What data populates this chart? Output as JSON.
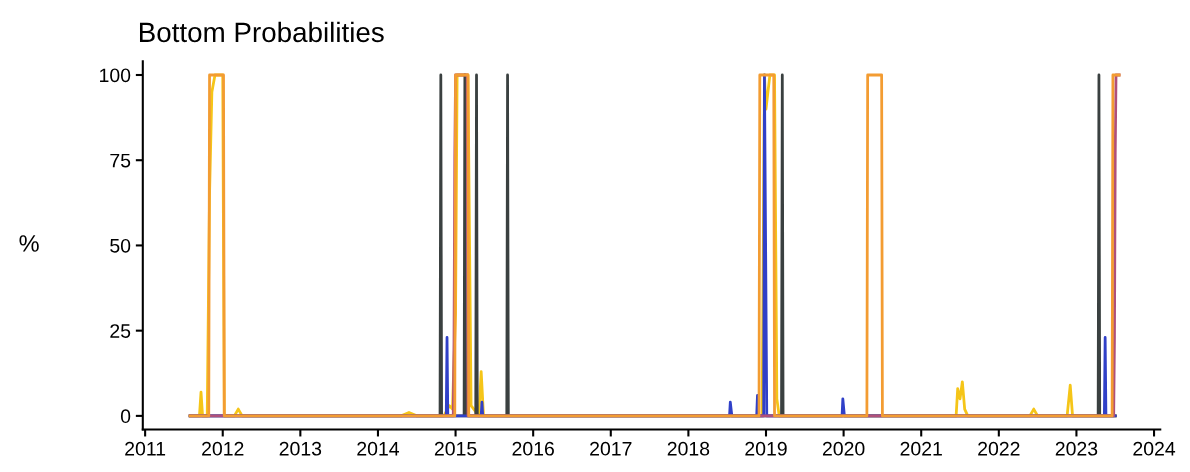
{
  "chart_data": {
    "type": "line",
    "title": "Bottom Probabilities",
    "ylabel": "%",
    "xlim": [
      2010.97,
      2024.08
    ],
    "xticks": [
      2011,
      2012,
      2013,
      2014,
      2015,
      2016,
      2017,
      2018,
      2019,
      2020,
      2021,
      2022,
      2023,
      2024
    ],
    "ylim": [
      -4,
      104
    ],
    "yticks": [
      0,
      25,
      50,
      75,
      100
    ],
    "grid": false,
    "legend": false,
    "marker": "none",
    "line_style": "solid",
    "series": [
      {
        "color": "#f5c518",
        "x": [
          2011.58,
          2011.7,
          2011.72,
          2011.74,
          2011.8,
          2011.83,
          2011.86,
          2011.9,
          2012.0,
          2012.02,
          2012.15,
          2012.2,
          2012.25,
          2014.3,
          2014.4,
          2014.5,
          2014.85,
          2014.92,
          2014.96,
          2015.0,
          2015.02,
          2015.16,
          2015.2,
          2015.3,
          2015.33,
          2015.36,
          2015.45,
          2018.95,
          2018.98,
          2019.0,
          2019.05,
          2019.11,
          2019.14,
          2019.17,
          2021.45,
          2021.47,
          2021.5,
          2021.53,
          2021.56,
          2021.6,
          2022.4,
          2022.45,
          2022.5,
          2022.88,
          2022.92,
          2022.95,
          2023.5
        ],
        "values": [
          0,
          0,
          7,
          0,
          0,
          65,
          95,
          100,
          100,
          0,
          0,
          2,
          0,
          0,
          1,
          0,
          0,
          3,
          2,
          30,
          100,
          100,
          3,
          0,
          13,
          0,
          0,
          0,
          100,
          90,
          100,
          100,
          5,
          0,
          0,
          8,
          5,
          10,
          2,
          0,
          0,
          2,
          0,
          0,
          9,
          0,
          0
        ]
      },
      {
        "color": "#3a4040",
        "x": [
          2011.58,
          2014.8,
          2014.81,
          2014.82,
          2015.11,
          2015.12,
          2015.13,
          2015.26,
          2015.27,
          2015.28,
          2015.66,
          2015.67,
          2015.68,
          2019.2,
          2019.21,
          2019.22,
          2023.28,
          2023.29,
          2023.3,
          2023.5
        ],
        "values": [
          0,
          0,
          100,
          0,
          0,
          100,
          0,
          0,
          100,
          0,
          0,
          100,
          0,
          0,
          100,
          0,
          0,
          100,
          0,
          0
        ]
      },
      {
        "color": "#3040c8",
        "x": [
          2011.58,
          2014.88,
          2014.89,
          2014.9,
          2015.33,
          2015.34,
          2015.35,
          2018.53,
          2018.54,
          2018.56,
          2018.88,
          2018.89,
          2018.9,
          2018.97,
          2018.98,
          2019.01,
          2019.98,
          2019.99,
          2020.01,
          2023.36,
          2023.37,
          2023.38,
          2023.5
        ],
        "values": [
          0,
          0,
          23,
          0,
          0,
          4,
          0,
          0,
          4,
          0,
          0,
          6,
          0,
          0,
          100,
          0,
          0,
          5,
          0,
          0,
          23,
          0,
          0
        ]
      },
      {
        "color": "#b0507a",
        "x": [
          2011.58,
          2014.97,
          2014.98,
          2014.99,
          2015.0,
          2015.05,
          2015.15,
          2015.16,
          2023.48,
          2023.49,
          2023.5,
          2023.51,
          2023.55
        ],
        "values": [
          0,
          0,
          22,
          76,
          100,
          100,
          100,
          0,
          0,
          23,
          77,
          100,
          100
        ]
      },
      {
        "color": "#f39c32",
        "x": [
          2011.58,
          2011.82,
          2011.83,
          2012.01,
          2012.02,
          2014.99,
          2015.0,
          2015.16,
          2015.17,
          2018.91,
          2018.92,
          2019.1,
          2019.11,
          2020.3,
          2020.31,
          2020.49,
          2020.5,
          2023.46,
          2023.47,
          2023.55
        ],
        "values": [
          0,
          0,
          100,
          100,
          0,
          0,
          100,
          100,
          0,
          0,
          100,
          100,
          0,
          0,
          100,
          100,
          0,
          0,
          100,
          100
        ]
      }
    ]
  }
}
